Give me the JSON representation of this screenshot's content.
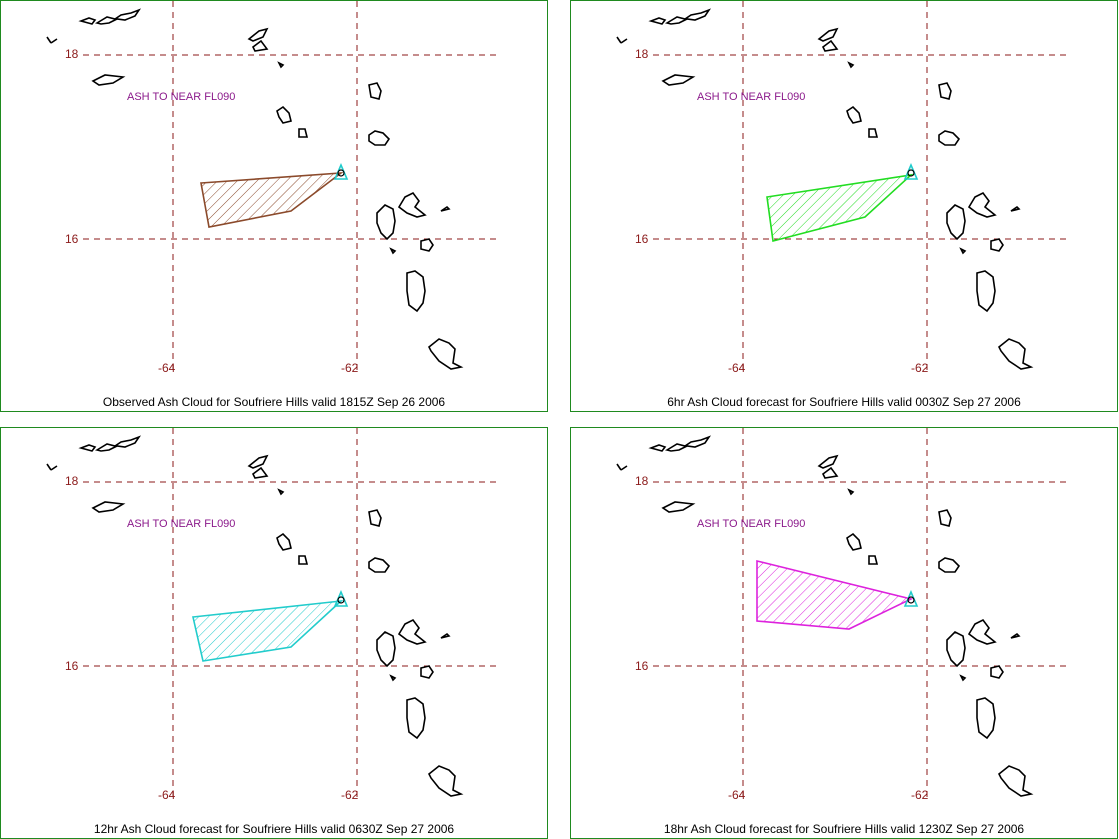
{
  "grid": {
    "lat_labels": [
      "18",
      "16"
    ],
    "lon_labels": [
      "-64",
      "-62"
    ]
  },
  "panels": [
    {
      "caption": "Observed Ash Cloud for Soufriere  Hills valid 1815Z Sep 26 2006",
      "note": "ASH TO NEAR FL090",
      "ash_color": "#8b4a2b"
    },
    {
      "caption": "6hr Ash Cloud forecast for Soufriere  Hills valid 0030Z Sep 27 2006",
      "note": "ASH TO NEAR FL090",
      "ash_color": "#22dd22"
    },
    {
      "caption": "12hr Ash Cloud forecast for Soufriere  Hills valid 0630Z Sep 27 2006",
      "note": "ASH TO NEAR FL090",
      "ash_color": "#22cccc"
    },
    {
      "caption": "18hr Ash Cloud forecast for Soufriere  Hills valid 1230Z Sep 27 2006",
      "note": "ASH TO NEAR FL090",
      "ash_color": "#dd22dd"
    }
  ]
}
